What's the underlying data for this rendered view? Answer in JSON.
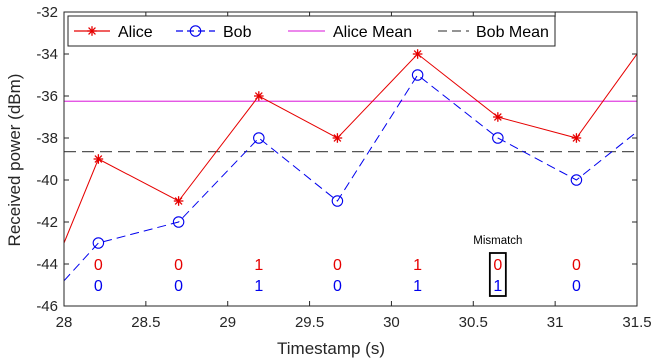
{
  "chart_data": {
    "type": "line",
    "xlabel": "Timestamp (s)",
    "ylabel": "Received power (dBm)",
    "xlim": [
      28,
      31.5
    ],
    "ylim": [
      -46,
      -32
    ],
    "xticks": [
      28,
      28.5,
      29,
      29.5,
      30,
      30.5,
      31,
      31.5
    ],
    "yticks": [
      -46,
      -44,
      -42,
      -40,
      -38,
      -36,
      -34,
      -32
    ],
    "grid": false,
    "legend_position": "top",
    "series": [
      {
        "name": "Alice",
        "color": "#e60000",
        "style": "solid",
        "marker": "asterisk",
        "x": [
          28.0,
          28.21,
          28.7,
          29.19,
          29.67,
          30.16,
          30.65,
          31.13,
          31.5
        ],
        "y": [
          -43,
          -39,
          -41,
          -36,
          -38,
          -34,
          -37,
          -38,
          -34
        ],
        "marker_x": [
          28.21,
          28.7,
          29.19,
          29.67,
          30.16,
          30.65,
          31.13
        ]
      },
      {
        "name": "Bob",
        "color": "#0000ee",
        "style": "dashed",
        "marker": "circle",
        "x": [
          28.0,
          28.21,
          28.7,
          29.19,
          29.67,
          30.16,
          30.65,
          31.13,
          31.5
        ],
        "y": [
          -44.8,
          -43,
          -42,
          -38,
          -41,
          -35,
          -38,
          -40,
          -37.7
        ],
        "marker_x": [
          28.21,
          28.7,
          29.19,
          29.67,
          30.16,
          30.65,
          31.13
        ]
      }
    ],
    "reference_lines": [
      {
        "name": "Alice Mean",
        "y": -36.25,
        "color": "#e040e0",
        "style": "solid"
      },
      {
        "name": "Bob Mean",
        "y": -38.65,
        "color": "#555555",
        "style": "dashed"
      }
    ],
    "bit_annotations": {
      "x": [
        28.21,
        28.7,
        29.19,
        29.67,
        30.16,
        30.65,
        31.13
      ],
      "alice": [
        "0",
        "0",
        "1",
        "0",
        "1",
        "0",
        "0"
      ],
      "bob": [
        "0",
        "0",
        "1",
        "0",
        "1",
        "1",
        "0"
      ],
      "alice_y": -44,
      "bob_y": -45
    },
    "mismatch": {
      "label": "Mismatch",
      "x": 30.65
    }
  }
}
